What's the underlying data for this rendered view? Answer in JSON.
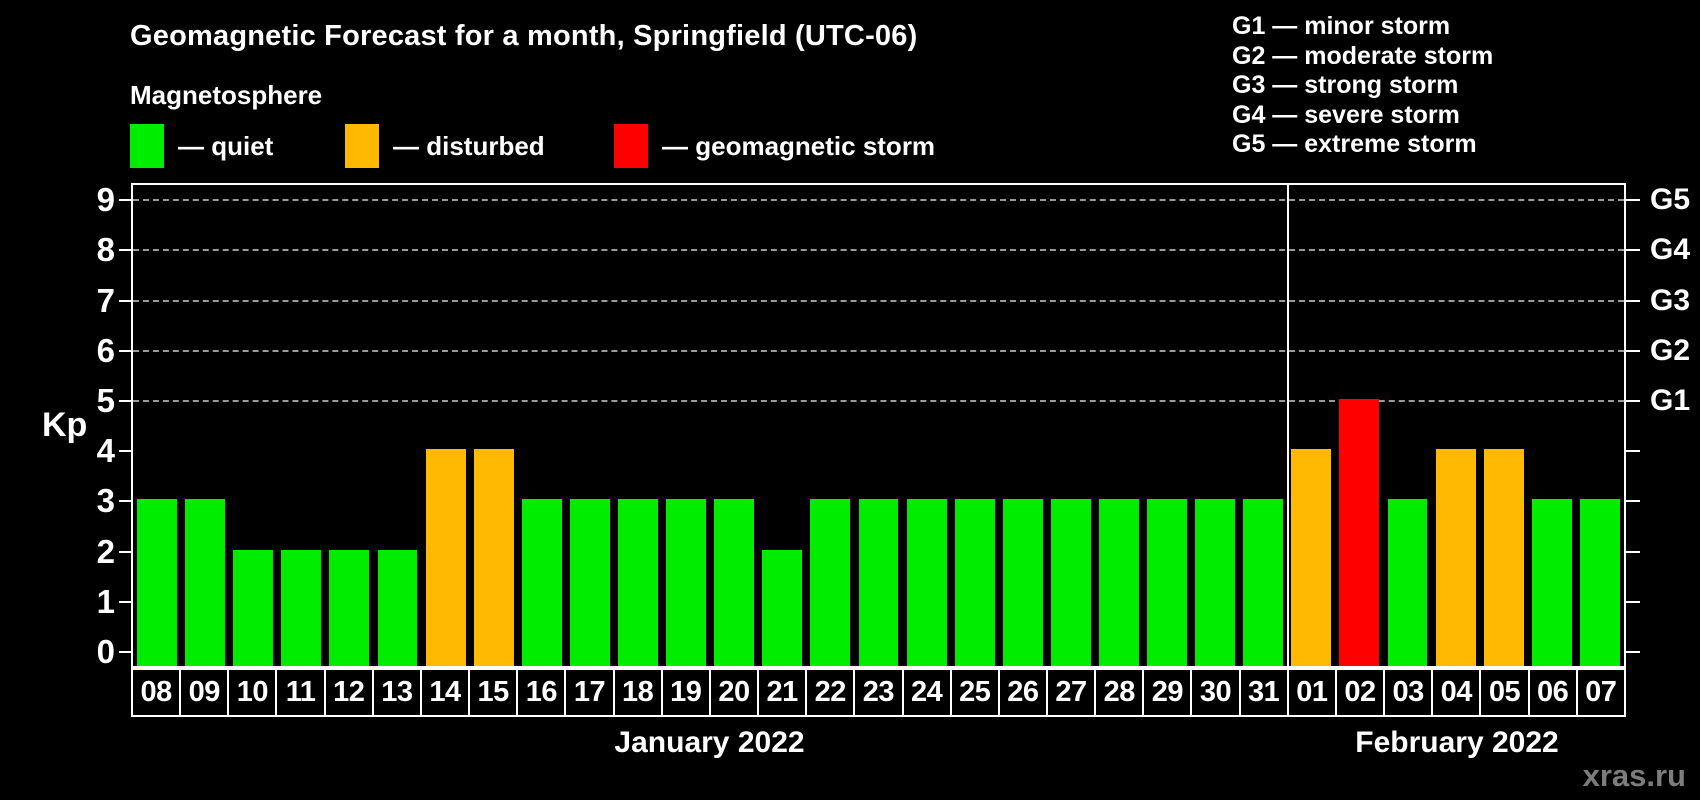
{
  "title": "Geomagnetic Forecast for a month, Springfield (UTC-06)",
  "subtitle": "Magnetosphere",
  "colors": {
    "quiet": "#00ED00",
    "disturbed": "#FFB900",
    "storm": "#FF0000",
    "grid": "#9A9A9A",
    "axis": "#FFFFFF"
  },
  "legend": {
    "items": [
      {
        "key": "quiet",
        "label": "— quiet"
      },
      {
        "key": "disturbed",
        "label": "— disturbed"
      },
      {
        "key": "storm",
        "label": "— geomagnetic storm"
      }
    ]
  },
  "g_legend": [
    "G1 — minor storm",
    "G2 — moderate storm",
    "G3 — strong storm",
    "G4 — severe storm",
    "G5 — extreme storm"
  ],
  "y_axis": {
    "label": "Kp",
    "ticks": [
      0,
      1,
      2,
      3,
      4,
      5,
      6,
      7,
      8,
      9
    ]
  },
  "right_axis": {
    "labels": [
      {
        "text": "G1",
        "level": 5
      },
      {
        "text": "G2",
        "level": 6
      },
      {
        "text": "G3",
        "level": 7
      },
      {
        "text": "G4",
        "level": 8
      },
      {
        "text": "G5",
        "level": 9
      }
    ]
  },
  "watermark": "xras.ru",
  "chart_data": {
    "type": "bar",
    "ylabel": "Kp",
    "ylim": [
      0,
      9
    ],
    "grid": "dashed horizontal at storm levels",
    "gridlines_at": [
      5,
      6,
      7,
      8,
      9
    ],
    "groups": [
      {
        "month_label": "January 2022",
        "days": [
          {
            "day": "08",
            "kp": 3,
            "status": "quiet"
          },
          {
            "day": "09",
            "kp": 3,
            "status": "quiet"
          },
          {
            "day": "10",
            "kp": 2,
            "status": "quiet"
          },
          {
            "day": "11",
            "kp": 2,
            "status": "quiet"
          },
          {
            "day": "12",
            "kp": 2,
            "status": "quiet"
          },
          {
            "day": "13",
            "kp": 2,
            "status": "quiet"
          },
          {
            "day": "14",
            "kp": 4,
            "status": "disturbed"
          },
          {
            "day": "15",
            "kp": 4,
            "status": "disturbed"
          },
          {
            "day": "16",
            "kp": 3,
            "status": "quiet"
          },
          {
            "day": "17",
            "kp": 3,
            "status": "quiet"
          },
          {
            "day": "18",
            "kp": 3,
            "status": "quiet"
          },
          {
            "day": "19",
            "kp": 3,
            "status": "quiet"
          },
          {
            "day": "20",
            "kp": 3,
            "status": "quiet"
          },
          {
            "day": "21",
            "kp": 2,
            "status": "quiet"
          },
          {
            "day": "22",
            "kp": 3,
            "status": "quiet"
          },
          {
            "day": "23",
            "kp": 3,
            "status": "quiet"
          },
          {
            "day": "24",
            "kp": 3,
            "status": "quiet"
          },
          {
            "day": "25",
            "kp": 3,
            "status": "quiet"
          },
          {
            "day": "26",
            "kp": 3,
            "status": "quiet"
          },
          {
            "day": "27",
            "kp": 3,
            "status": "quiet"
          },
          {
            "day": "28",
            "kp": 3,
            "status": "quiet"
          },
          {
            "day": "29",
            "kp": 3,
            "status": "quiet"
          },
          {
            "day": "30",
            "kp": 3,
            "status": "quiet"
          },
          {
            "day": "31",
            "kp": 3,
            "status": "quiet"
          }
        ]
      },
      {
        "month_label": "February 2022",
        "days": [
          {
            "day": "01",
            "kp": 4,
            "status": "disturbed"
          },
          {
            "day": "02",
            "kp": 5,
            "status": "storm"
          },
          {
            "day": "03",
            "kp": 3,
            "status": "quiet"
          },
          {
            "day": "04",
            "kp": 4,
            "status": "disturbed"
          },
          {
            "day": "05",
            "kp": 4,
            "status": "disturbed"
          },
          {
            "day": "06",
            "kp": 3,
            "status": "quiet"
          },
          {
            "day": "07",
            "kp": 3,
            "status": "quiet"
          }
        ]
      }
    ]
  }
}
